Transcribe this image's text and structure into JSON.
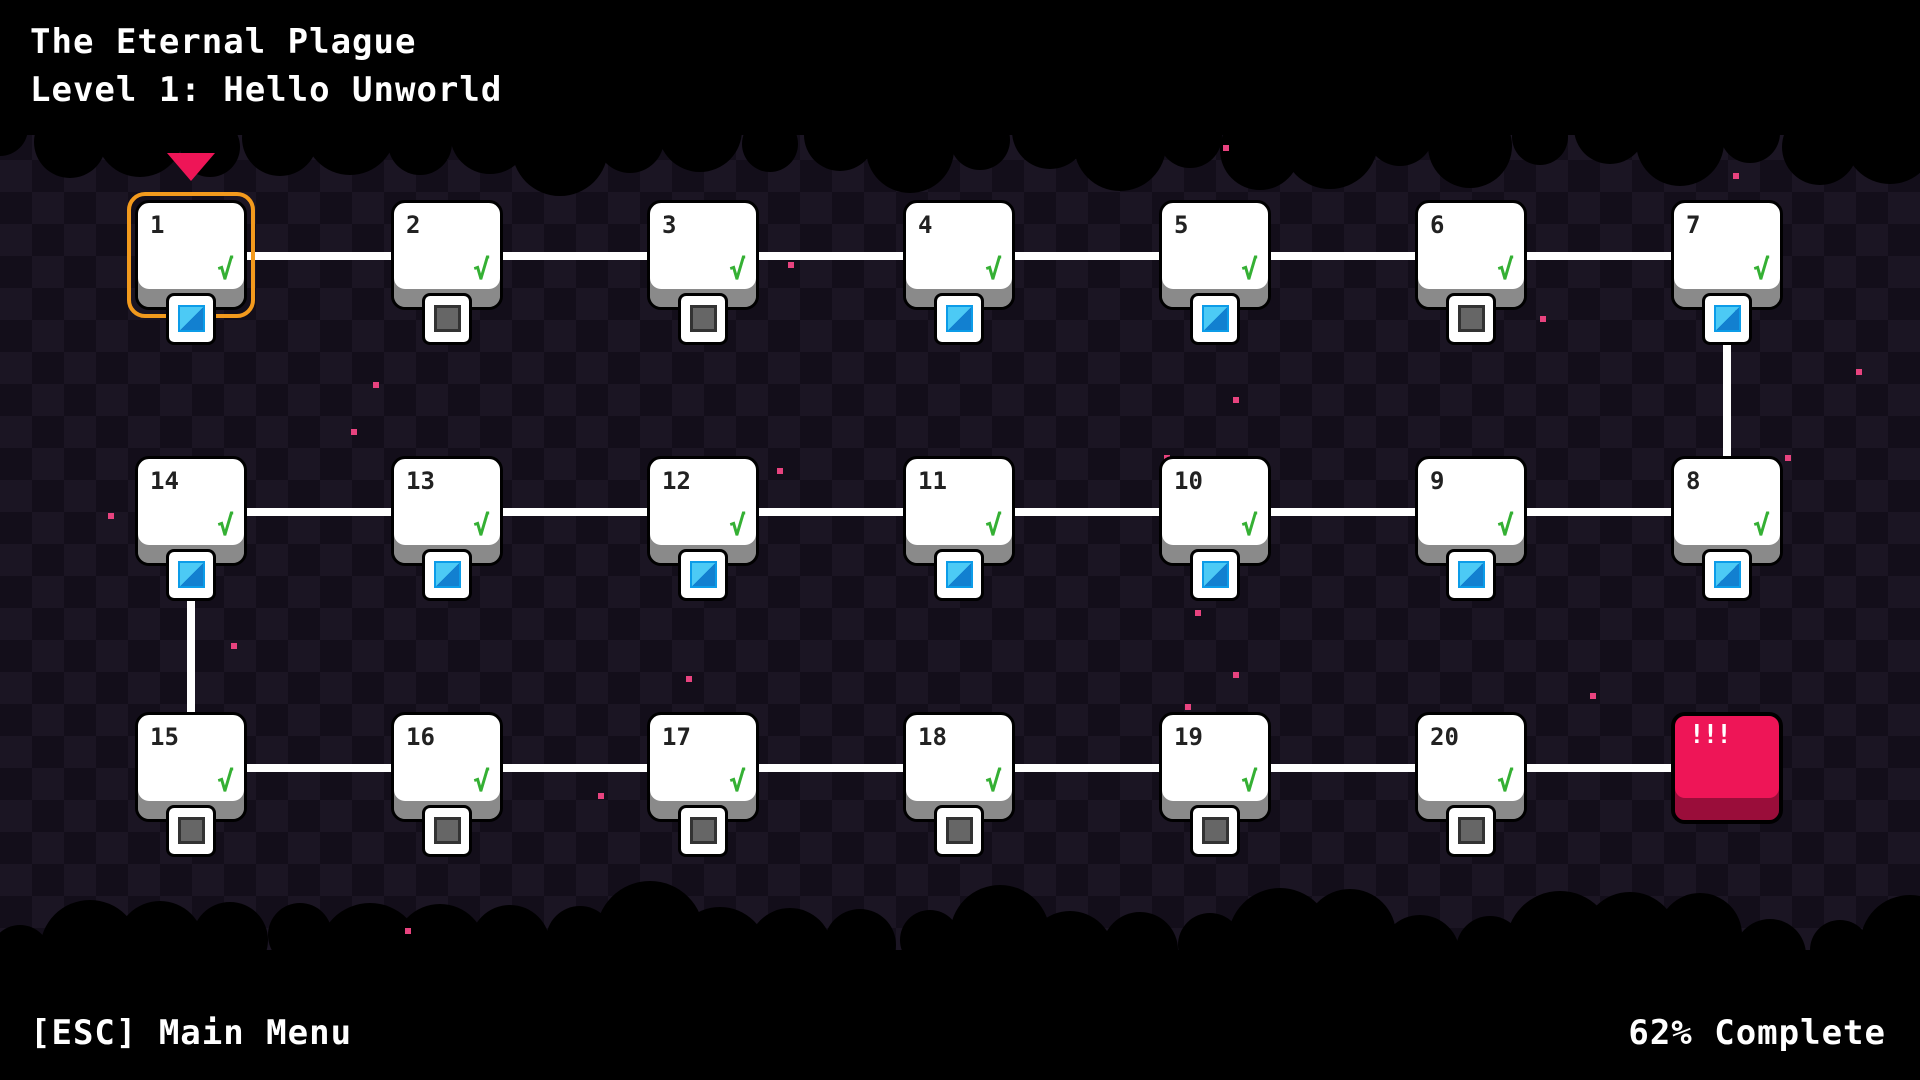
{
  "header": {
    "world_title": "The Eternal Plague",
    "level_title": "Level 1: Hello Unworld"
  },
  "footer": {
    "menu_hint": "[ESC] Main Menu",
    "progress_text": "62% Complete",
    "progress_percent": 62
  },
  "colors": {
    "accent": "#ee1557",
    "selection": "#f39a1d",
    "check": "#35b034",
    "gem_collected": "#1c9ee8",
    "gem_empty": "#666666"
  },
  "selected_level": 1,
  "levels": [
    {
      "number": "1",
      "completed": true,
      "gem": "blue"
    },
    {
      "number": "2",
      "completed": true,
      "gem": "gray"
    },
    {
      "number": "3",
      "completed": true,
      "gem": "gray"
    },
    {
      "number": "4",
      "completed": true,
      "gem": "blue"
    },
    {
      "number": "5",
      "completed": true,
      "gem": "blue"
    },
    {
      "number": "6",
      "completed": true,
      "gem": "gray"
    },
    {
      "number": "7",
      "completed": true,
      "gem": "blue"
    },
    {
      "number": "8",
      "completed": true,
      "gem": "blue"
    },
    {
      "number": "9",
      "completed": true,
      "gem": "blue"
    },
    {
      "number": "10",
      "completed": true,
      "gem": "blue"
    },
    {
      "number": "11",
      "completed": true,
      "gem": "blue"
    },
    {
      "number": "12",
      "completed": true,
      "gem": "blue"
    },
    {
      "number": "13",
      "completed": true,
      "gem": "blue"
    },
    {
      "number": "14",
      "completed": true,
      "gem": "blue"
    },
    {
      "number": "15",
      "completed": true,
      "gem": "gray"
    },
    {
      "number": "16",
      "completed": true,
      "gem": "gray"
    },
    {
      "number": "17",
      "completed": true,
      "gem": "gray"
    },
    {
      "number": "18",
      "completed": true,
      "gem": "gray"
    },
    {
      "number": "19",
      "completed": true,
      "gem": "gray"
    },
    {
      "number": "20",
      "completed": true,
      "gem": "gray"
    }
  ],
  "check_glyph": "√",
  "boss": {
    "label": "!!!"
  }
}
